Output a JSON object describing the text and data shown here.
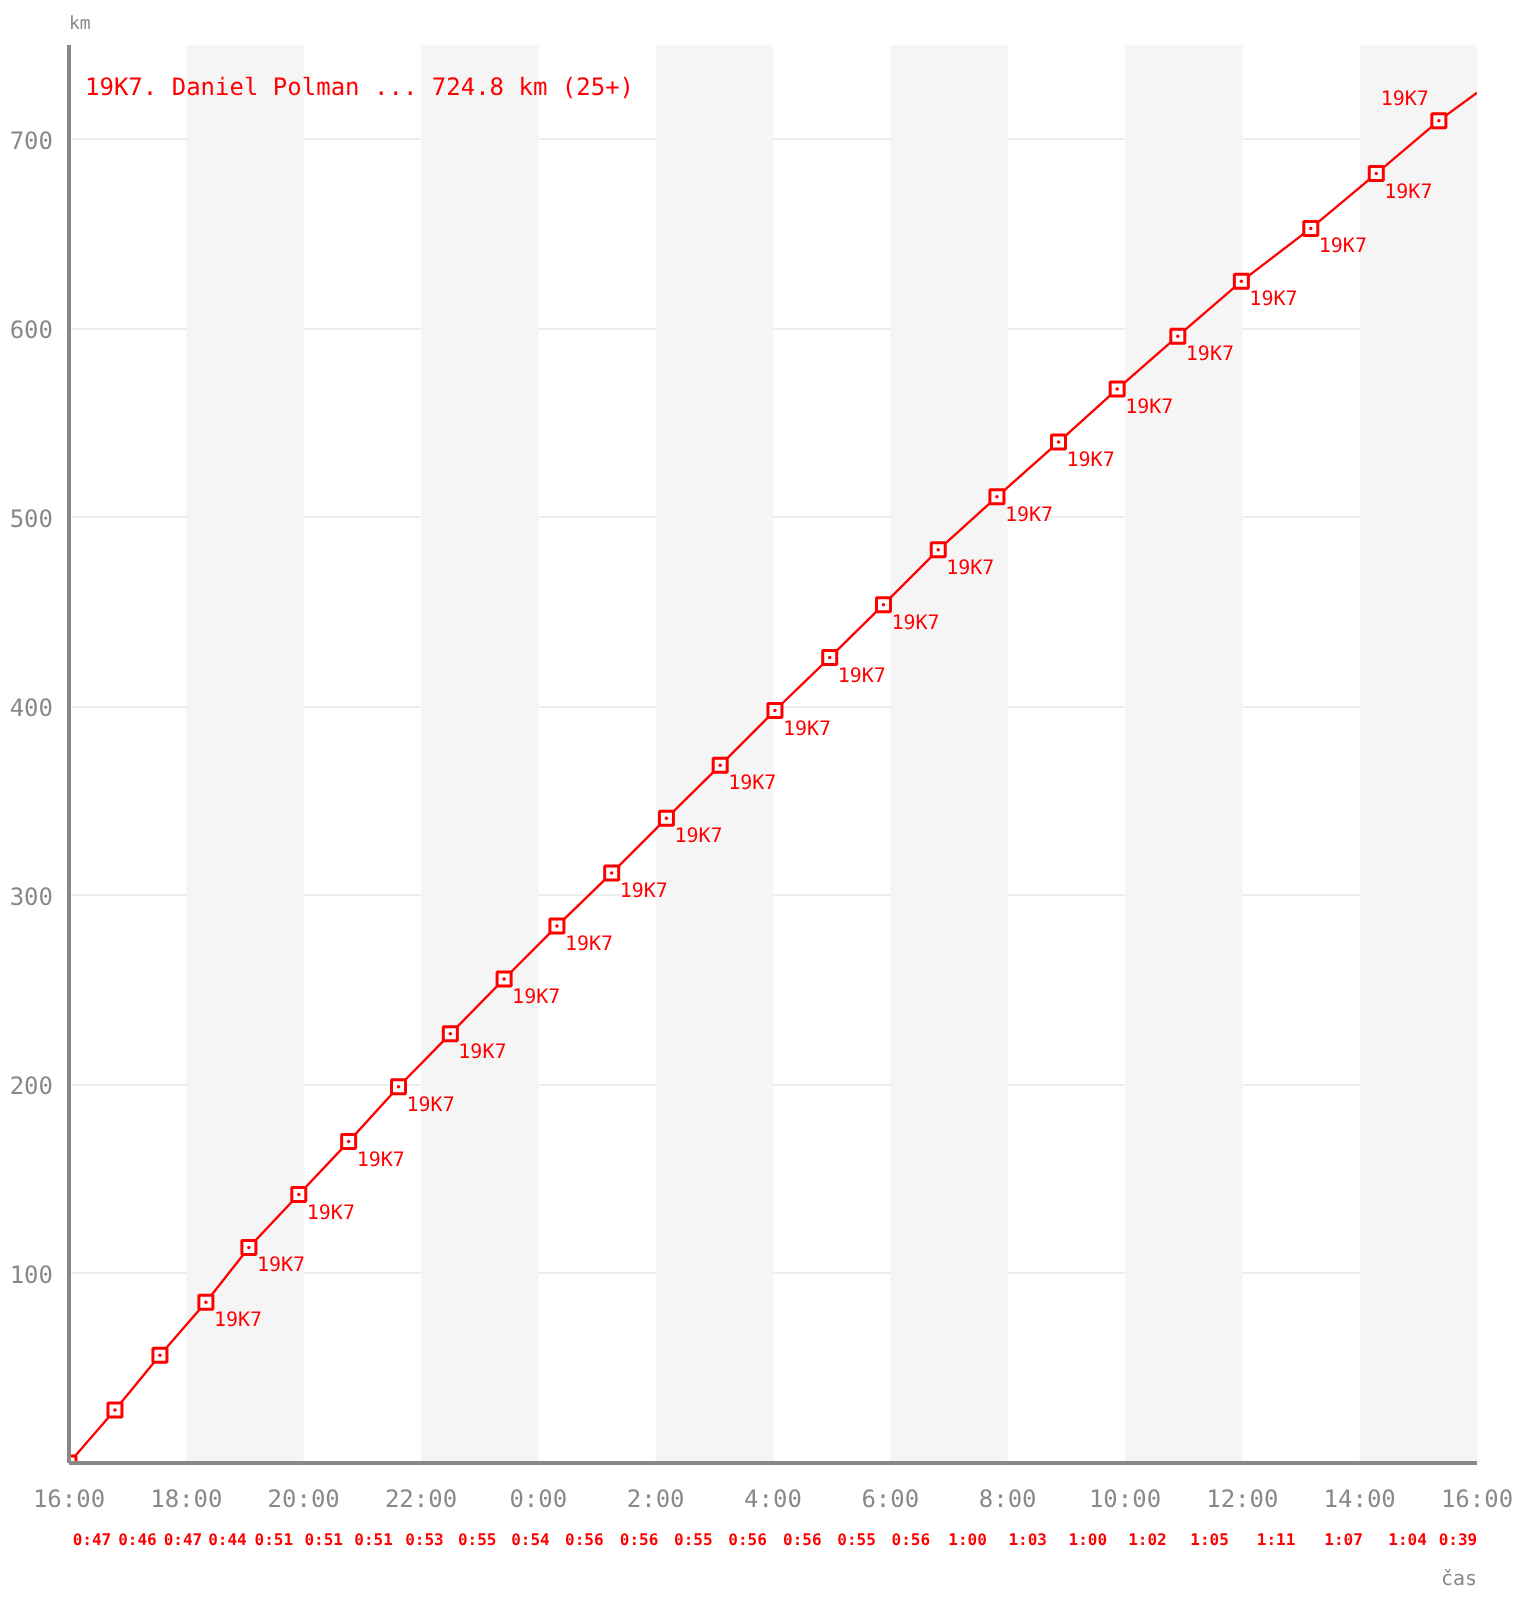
{
  "chart_data": {
    "type": "line",
    "xlabel": "čas",
    "ylabel": "km",
    "xlim": [
      "2000-01-01T16:00",
      "2000-01-02T16:00"
    ],
    "ylim": [
      0,
      750
    ],
    "xticks": [
      {
        "value": "2000-01-01T16:00",
        "label": "16:00"
      },
      {
        "value": "2000-01-01T18:00",
        "label": "18:00"
      },
      {
        "value": "2000-01-01T20:00",
        "label": "20:00"
      },
      {
        "value": "2000-01-01T22:00",
        "label": "22:00"
      },
      {
        "value": "2000-01-02T00:00",
        "label": "0:00"
      },
      {
        "value": "2000-01-02T02:00",
        "label": "2:00"
      },
      {
        "value": "2000-01-02T04:00",
        "label": "4:00"
      },
      {
        "value": "2000-01-02T06:00",
        "label": "6:00"
      },
      {
        "value": "2000-01-02T08:00",
        "label": "8:00"
      },
      {
        "value": "2000-01-02T10:00",
        "label": "10:00"
      },
      {
        "value": "2000-01-02T12:00",
        "label": "12:00"
      },
      {
        "value": "2000-01-02T14:00",
        "label": "14:00"
      },
      {
        "value": "2000-01-02T16:00",
        "label": "16:00"
      }
    ],
    "yticks": [
      100,
      200,
      300,
      400,
      500,
      600,
      700
    ],
    "grid": "y",
    "legend": "top left",
    "line_style": "solid",
    "bands": [
      {
        "axis": "x",
        "from": "2000-01-01T18:00",
        "to": "2000-01-01T20:00",
        "color": "#f5f5f5"
      },
      {
        "axis": "x",
        "from": "2000-01-01T22:00",
        "to": "2000-01-02T00:00",
        "color": "#f5f5f5"
      },
      {
        "axis": "x",
        "from": "2000-01-02T02:00",
        "to": "2000-01-02T04:00",
        "color": "#f5f5f5"
      },
      {
        "axis": "x",
        "from": "2000-01-02T06:00",
        "to": "2000-01-02T08:00",
        "color": "#f5f5f5"
      },
      {
        "axis": "x",
        "from": "2000-01-02T10:00",
        "to": "2000-01-02T12:00",
        "color": "#f5f5f5"
      },
      {
        "axis": "x",
        "from": "2000-01-02T14:00",
        "to": "2000-01-02T16:00",
        "color": "#f5f5f5"
      }
    ],
    "series": [
      {
        "name": "19K7. Daniel Polman ... 724.8 km (25+)",
        "color": "#ff0000",
        "marker": "none",
        "x": [
          "2000-01-01T16:00",
          "2000-01-01T16:47",
          "2000-01-01T17:33",
          "2000-01-01T18:20",
          "2000-01-01T19:04",
          "2000-01-01T19:55",
          "2000-01-01T20:46",
          "2000-01-01T21:37",
          "2000-01-01T22:30",
          "2000-01-01T23:25",
          "2000-01-02T00:19",
          "2000-01-02T01:15",
          "2000-01-02T02:11",
          "2000-01-02T03:06",
          "2000-01-02T04:02",
          "2000-01-02T04:58",
          "2000-01-02T05:53",
          "2000-01-02T06:49",
          "2000-01-02T07:49",
          "2000-01-02T08:52",
          "2000-01-02T09:52",
          "2000-01-02T10:54",
          "2000-01-02T11:59",
          "2000-01-02T13:10",
          "2000-01-02T14:17",
          "2000-01-02T15:21",
          "2000-01-02T16:00"
        ],
        "values": [
          0,
          28,
          57,
          85,
          114,
          142,
          170,
          199,
          227,
          256,
          284,
          312,
          341,
          369,
          398,
          426,
          454,
          483,
          511,
          540,
          568,
          596,
          625,
          653,
          682,
          710,
          724.8
        ]
      },
      {
        "type": "scatter",
        "color": "#ff0000",
        "marker": "square",
        "x": [
          "2000-01-01T16:00",
          "2000-01-01T16:47",
          "2000-01-01T17:33",
          "2000-01-01T18:20",
          "2000-01-01T19:04",
          "2000-01-01T19:55",
          "2000-01-01T20:46",
          "2000-01-01T21:37",
          "2000-01-01T22:30",
          "2000-01-01T23:25",
          "2000-01-02T00:19",
          "2000-01-02T01:15",
          "2000-01-02T02:11",
          "2000-01-02T03:06",
          "2000-01-02T04:02",
          "2000-01-02T04:58",
          "2000-01-02T05:53",
          "2000-01-02T06:49",
          "2000-01-02T07:49",
          "2000-01-02T08:52",
          "2000-01-02T09:52",
          "2000-01-02T10:54",
          "2000-01-02T11:59",
          "2000-01-02T13:10",
          "2000-01-02T14:17",
          "2000-01-02T15:21"
        ],
        "values": [
          0,
          28,
          57,
          85,
          114,
          142,
          170,
          199,
          227,
          256,
          284,
          312,
          341,
          369,
          398,
          426,
          454,
          483,
          511,
          540,
          568,
          596,
          625,
          653,
          682,
          710
        ],
        "value_labels": [
          null,
          null,
          null,
          "19K7",
          "19K7",
          "19K7",
          "19K7",
          "19K7",
          "19K7",
          "19K7",
          "19K7",
          "19K7",
          "19K7",
          "19K7",
          "19K7",
          "19K7",
          "19K7",
          "19K7",
          "19K7",
          "19K7",
          "19K7",
          "19K7",
          "19K7",
          "19K7",
          "19K7",
          "19K7"
        ]
      }
    ],
    "annotations": [
      "0:47",
      "0:46",
      "0:47",
      "0:44",
      "0:51",
      "0:51",
      "0:51",
      "0:53",
      "0:55",
      "0:54",
      "0:56",
      "0:56",
      "0:55",
      "0:56",
      "0:56",
      "0:55",
      "0:56",
      "1:00",
      "1:03",
      "1:00",
      "1:02",
      "1:05",
      "1:11",
      "1:07",
      "1:04",
      "0:39"
    ]
  }
}
